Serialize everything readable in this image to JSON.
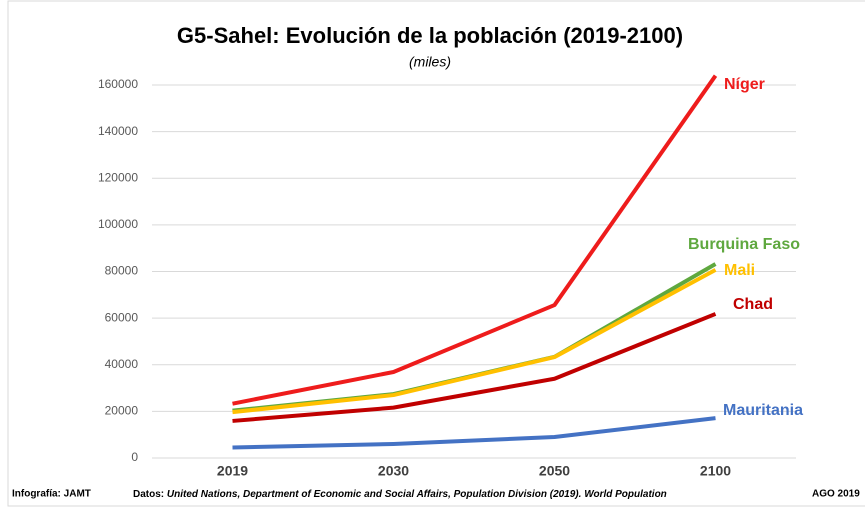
{
  "chart_data": {
    "type": "line",
    "title": "G5-Sahel: Evolución de la población (2019-2100)",
    "subtitle": "(miles)",
    "categories": [
      "2019",
      "2030",
      "2050",
      "2100"
    ],
    "series": [
      {
        "name": "Níger",
        "color": "#ee1c1c",
        "values": [
          23300,
          36900,
          65600,
          164000
        ]
      },
      {
        "name": "Burquina Faso",
        "color": "#5fa83f",
        "values": [
          20300,
          27400,
          43400,
          83200
        ]
      },
      {
        "name": "Mali",
        "color": "#ffc000",
        "values": [
          19700,
          27000,
          43300,
          80700
        ]
      },
      {
        "name": "Chad",
        "color": "#c00000",
        "values": [
          15900,
          21600,
          34000,
          61800
        ]
      },
      {
        "name": "Mauritania",
        "color": "#4472c4",
        "values": [
          4500,
          6000,
          9000,
          17100
        ]
      }
    ],
    "ylim": [
      0,
      160000
    ],
    "yticks": [
      0,
      20000,
      40000,
      60000,
      80000,
      100000,
      120000,
      140000,
      160000
    ],
    "grid": true,
    "credit": "Infografía: JAMT",
    "source_label": "Datos:",
    "source": "United Nations, Department of Economic and Social Affairs, Population Division (2019). World Population",
    "date": "AGO 2019"
  }
}
